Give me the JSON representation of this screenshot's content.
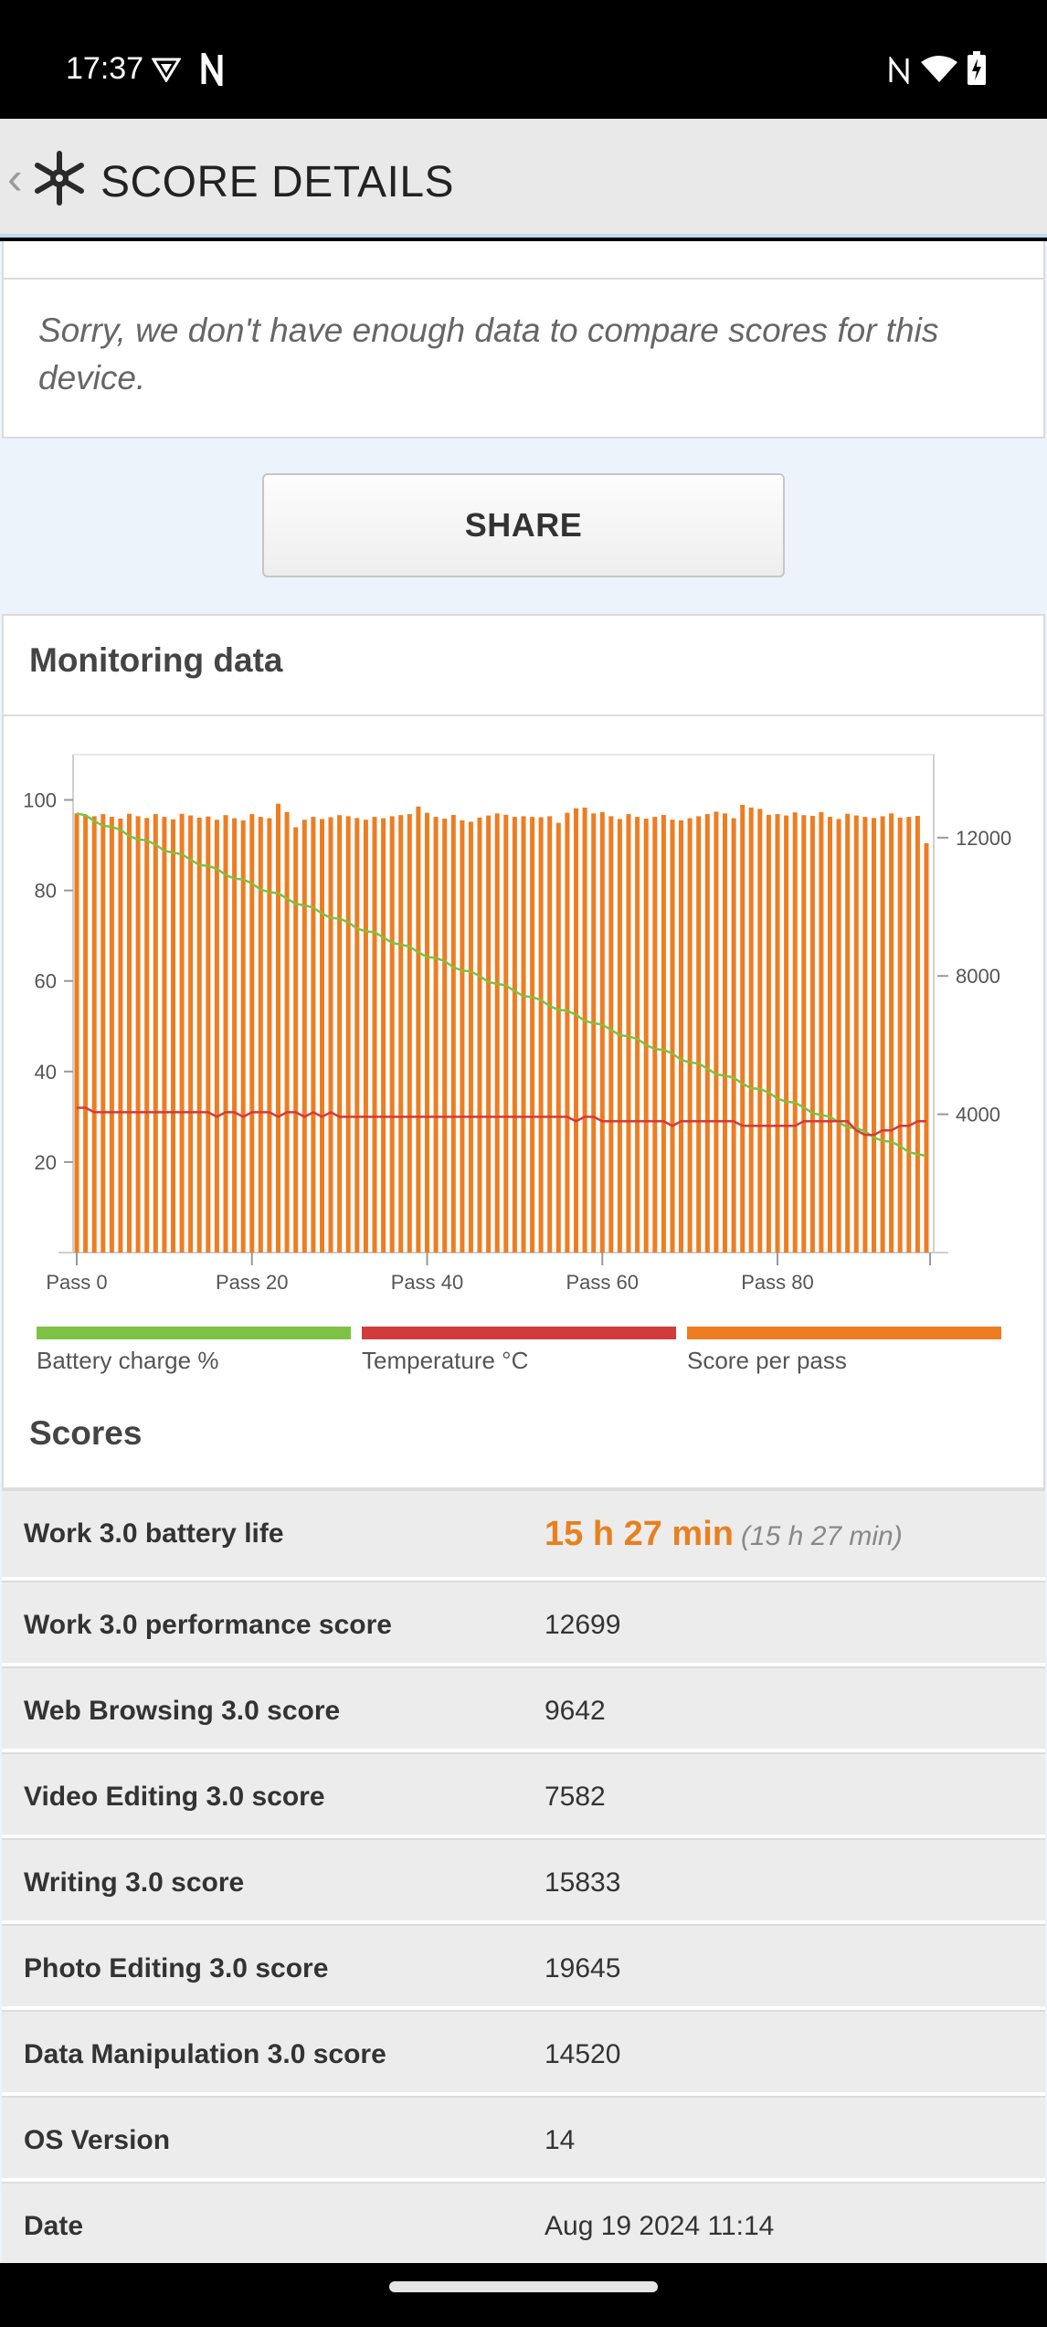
{
  "status_bar": {
    "time": "17:37",
    "left_icons": [
      "vpn-shield-icon",
      "notification-n-icon"
    ],
    "right_icons": [
      "nfc-icon",
      "wifi-icon",
      "battery-charging-icon"
    ]
  },
  "app_bar": {
    "back_glyph": "‹",
    "title": "SCORE DETAILS",
    "logo_icon": "snowflake-logo-icon"
  },
  "compare_message": "Sorry, we don't have enough data to compare scores for this device.",
  "share_label": "SHARE",
  "monitoring": {
    "heading": "Monitoring data",
    "legend": [
      {
        "label": "Battery charge %",
        "color": "#7dc242"
      },
      {
        "label": "Temperature °C",
        "color": "#d23b3b"
      },
      {
        "label": "Score per pass",
        "color": "#ee7d22"
      }
    ]
  },
  "chart_data": {
    "type": "bar",
    "x_tick_labels": [
      "Pass 0",
      "Pass 20",
      "Pass 40",
      "Pass 60",
      "Pass 80"
    ],
    "x_tick_values": [
      0,
      20,
      40,
      60,
      80
    ],
    "left_axis": {
      "ticks": [
        20,
        40,
        60,
        80,
        100
      ],
      "range": [
        0,
        110
      ]
    },
    "right_axis": {
      "ticks": [
        4000,
        8000,
        12000
      ],
      "range": [
        0,
        14400
      ]
    },
    "passes": 98,
    "series": [
      {
        "name": "Score per pass",
        "axis": "right",
        "type": "bar",
        "color": "#ee7d22",
        "values": [
          12700,
          12650,
          12620,
          12680,
          12600,
          12550,
          12690,
          12620,
          12570,
          12680,
          12600,
          12530,
          12690,
          12640,
          12580,
          12610,
          12520,
          12650,
          12560,
          12500,
          12680,
          12600,
          12560,
          12980,
          12740,
          12300,
          12520,
          12600,
          12540,
          12590,
          12650,
          12620,
          12570,
          12520,
          12600,
          12560,
          12620,
          12650,
          12680,
          12900,
          12720,
          12600,
          12550,
          12660,
          12500,
          12460,
          12580,
          12640,
          12700,
          12660,
          12600,
          12620,
          12600,
          12590,
          12620,
          12430,
          12720,
          12850,
          12870,
          12700,
          12740,
          12620,
          12540,
          12680,
          12600,
          12550,
          12600,
          12660,
          12520,
          12500,
          12560,
          12620,
          12680,
          12750,
          12700,
          12560,
          12950,
          12870,
          12830,
          12660,
          12680,
          12640,
          12730,
          12650,
          12630,
          12740,
          12600,
          12540,
          12690,
          12640,
          12600,
          12570,
          12620,
          12700,
          12580,
          12600,
          12630,
          11840
        ]
      },
      {
        "name": "Battery charge %",
        "axis": "left",
        "type": "line",
        "color": "#7dc242",
        "start": 97,
        "end": 21
      },
      {
        "name": "Temperature °C",
        "axis": "left",
        "type": "line",
        "color": "#d23b3b",
        "values": [
          32,
          32,
          31,
          31,
          31,
          31,
          31,
          31,
          31,
          31,
          31,
          31,
          31,
          31,
          31,
          31,
          30,
          31,
          31,
          30,
          31,
          31,
          31,
          30,
          31,
          31,
          30,
          31,
          30,
          31,
          30,
          30,
          30,
          30,
          30,
          30,
          30,
          30,
          30,
          30,
          30,
          30,
          30,
          30,
          30,
          30,
          30,
          30,
          30,
          30,
          30,
          30,
          30,
          30,
          30,
          30,
          30,
          29,
          30,
          30,
          29,
          29,
          29,
          29,
          29,
          29,
          29,
          29,
          28,
          29,
          29,
          29,
          29,
          29,
          29,
          29,
          28,
          28,
          28,
          28,
          28,
          28,
          28,
          29,
          29,
          29,
          29,
          29,
          29,
          27,
          26,
          26,
          27,
          27,
          28,
          28,
          29,
          29
        ]
      }
    ]
  },
  "scores": {
    "heading": "Scores",
    "battery_life": {
      "label": "Work 3.0 battery life",
      "value": "15 h 27 min",
      "sub": "(15 h 27 min)"
    },
    "rows": [
      {
        "label": "Work 3.0 performance score",
        "value": "12699"
      },
      {
        "label": "Web Browsing 3.0 score",
        "value": "9642"
      },
      {
        "label": "Video Editing 3.0 score",
        "value": "7582"
      },
      {
        "label": "Writing 3.0 score",
        "value": "15833"
      },
      {
        "label": "Photo Editing 3.0 score",
        "value": "19645"
      },
      {
        "label": "Data Manipulation 3.0 score",
        "value": "14520"
      },
      {
        "label": "OS Version",
        "value": "14"
      },
      {
        "label": "Date",
        "value": "Aug 19 2024 11:14"
      }
    ]
  }
}
